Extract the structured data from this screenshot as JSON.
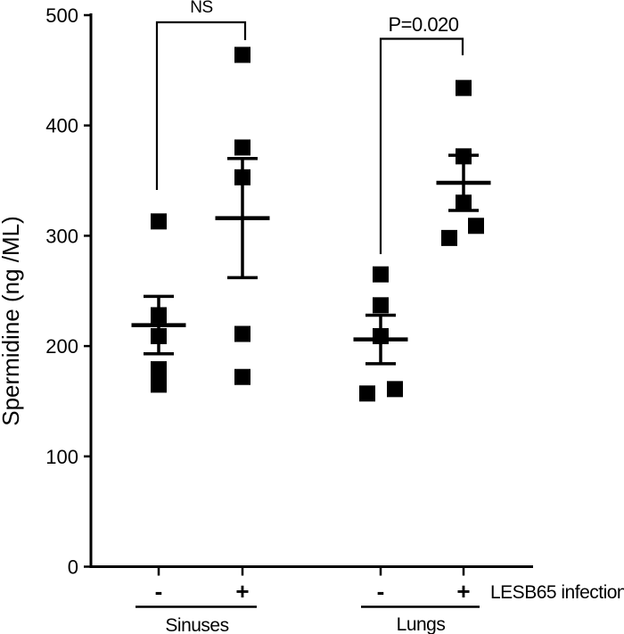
{
  "figure": {
    "background_color": "#ffffff",
    "ink_color": "#000000"
  },
  "chart_data": {
    "type": "scatter",
    "subtype": "grouped dot plot with mean ± SEM error bars",
    "marker": "filled-black-square",
    "grid": false,
    "ylabel": "Spermidine (ng /ML)",
    "ylim": [
      0,
      500
    ],
    "yticks": [
      500,
      400,
      300,
      200,
      100,
      0
    ],
    "x_axis_annotation": "LESB65 infection",
    "groups": [
      {
        "label": "Sinuses",
        "comparison": "NS",
        "series": [
          {
            "condition": "-",
            "mean": 219,
            "sem": 26,
            "points": [
              {
                "value": 313,
                "dx": 0
              },
              {
                "value": 228,
                "dx": 0
              },
              {
                "value": 209,
                "dx": 0
              },
              {
                "value": 179,
                "dx": 0
              },
              {
                "value": 165,
                "dx": 0
              }
            ]
          },
          {
            "condition": "+",
            "mean": 316,
            "sem": 54,
            "points": [
              {
                "value": 464,
                "dx": 0
              },
              {
                "value": 380,
                "dx": 0
              },
              {
                "value": 353,
                "dx": 0
              },
              {
                "value": 211,
                "dx": 0
              },
              {
                "value": 172,
                "dx": 0
              }
            ]
          }
        ]
      },
      {
        "label": "Lungs",
        "comparison": "P=0.020",
        "series": [
          {
            "condition": "-",
            "mean": 206,
            "sem": 22,
            "points": [
              {
                "value": 265,
                "dx": 0
              },
              {
                "value": 237,
                "dx": 0
              },
              {
                "value": 209,
                "dx": 0
              },
              {
                "value": 161,
                "dx": 16
              },
              {
                "value": 157,
                "dx": -15
              }
            ]
          },
          {
            "condition": "+",
            "mean": 348,
            "sem": 25,
            "points": [
              {
                "value": 434,
                "dx": 0
              },
              {
                "value": 372,
                "dx": 0
              },
              {
                "value": 330,
                "dx": 0
              },
              {
                "value": 309,
                "dx": 14
              },
              {
                "value": 298,
                "dx": -16
              }
            ]
          }
        ]
      }
    ]
  }
}
